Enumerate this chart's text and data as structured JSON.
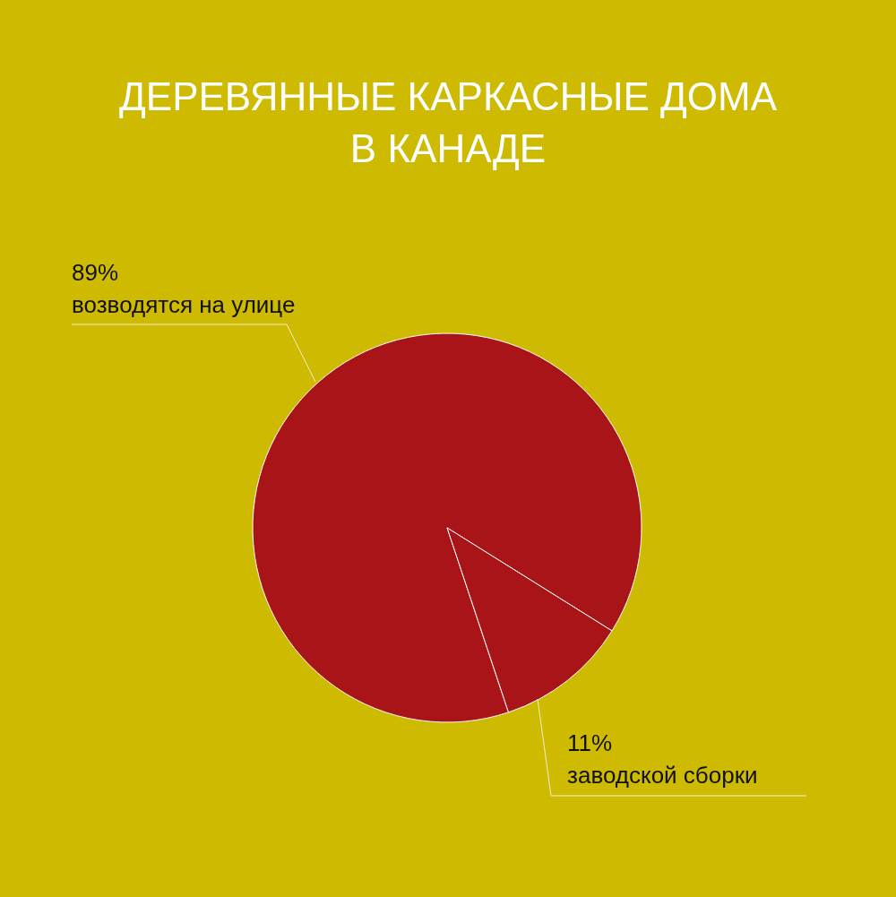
{
  "chart_data": {
    "type": "pie",
    "title": "ДЕРЕВЯННЫЕ КАРКАСНЫЕ ДОМА В КАНАДЕ",
    "categories": [
      "возводятся на улице",
      "заводской сборки"
    ],
    "values": [
      89,
      11
    ],
    "value_labels": [
      "89%",
      "11%"
    ],
    "colors": [
      "#a81418",
      "#a81418"
    ]
  }
}
